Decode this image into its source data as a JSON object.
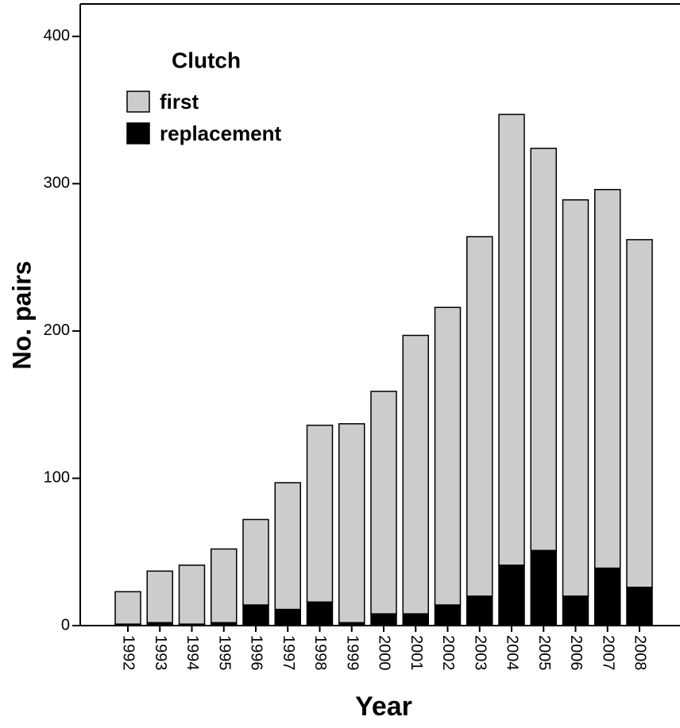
{
  "chart_data": {
    "type": "stacked-bar",
    "x_label": "Year",
    "y_label": "No. pairs",
    "legend_title": "Clutch",
    "categories": [
      "1992",
      "1993",
      "1994",
      "1995",
      "1996",
      "1997",
      "1998",
      "1999",
      "2000",
      "2001",
      "2002",
      "2003",
      "2004",
      "2005",
      "2006",
      "2007",
      "2008"
    ],
    "series": [
      {
        "name": "replacement",
        "color": "#000000",
        "values": [
          1,
          2,
          1,
          2,
          14,
          11,
          16,
          2,
          8,
          8,
          14,
          20,
          41,
          51,
          20,
          39,
          26
        ]
      },
      {
        "name": "first",
        "color": "#cccccc",
        "values": [
          22,
          35,
          40,
          50,
          58,
          86,
          120,
          135,
          151,
          189,
          202,
          244,
          306,
          273,
          269,
          257,
          236
        ]
      }
    ],
    "ylim": [
      0,
      422
    ],
    "yticks": [
      0,
      100,
      200,
      300,
      400
    ],
    "legend_position": "upper left"
  }
}
